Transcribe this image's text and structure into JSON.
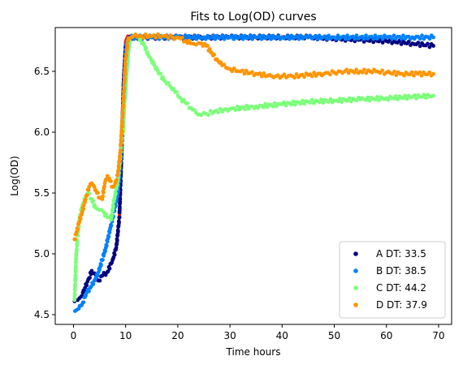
{
  "chart_data": {
    "type": "scatter",
    "title": "Fits to Log(OD) curves",
    "xlabel": "Time hours",
    "ylabel": "Log(OD)",
    "xlim": [
      -3.5,
      72.5
    ],
    "ylim": [
      4.42,
      6.86
    ],
    "xticks": [
      0,
      10,
      20,
      30,
      40,
      50,
      60,
      70
    ],
    "yticks": [
      4.5,
      5.0,
      5.5,
      6.0,
      6.5
    ],
    "ytick_labels": [
      "4.5",
      "5.0",
      "5.5",
      "6.0",
      "6.5"
    ],
    "grid": false,
    "legend_position": "lower-right",
    "series": [
      {
        "name": "A DT: 33.5",
        "color": "#00007f",
        "points": [
          [
            0.2,
            4.61
          ],
          [
            0.8,
            4.62
          ],
          [
            1.5,
            4.65
          ],
          [
            2.2,
            4.72
          ],
          [
            3.0,
            4.8
          ],
          [
            3.5,
            4.86
          ],
          [
            4.0,
            4.84
          ],
          [
            4.8,
            4.78
          ],
          [
            5.5,
            4.82
          ],
          [
            6.5,
            4.85
          ],
          [
            7.5,
            4.95
          ],
          [
            8.2,
            5.05
          ],
          [
            8.8,
            5.3
          ],
          [
            9.2,
            5.8
          ],
          [
            9.6,
            6.4
          ],
          [
            10.0,
            6.7
          ],
          [
            10.5,
            6.77
          ],
          [
            12,
            6.78
          ],
          [
            15,
            6.78
          ],
          [
            20,
            6.78
          ],
          [
            25,
            6.78
          ],
          [
            30,
            6.78
          ],
          [
            35,
            6.78
          ],
          [
            40,
            6.78
          ],
          [
            45,
            6.78
          ],
          [
            50,
            6.77
          ],
          [
            55,
            6.76
          ],
          [
            60,
            6.75
          ],
          [
            65,
            6.73
          ],
          [
            69,
            6.71
          ]
        ]
      },
      {
        "name": "B DT: 38.5",
        "color": "#0080ff",
        "points": [
          [
            0.3,
            4.53
          ],
          [
            1.0,
            4.55
          ],
          [
            1.8,
            4.6
          ],
          [
            2.5,
            4.68
          ],
          [
            3.2,
            4.72
          ],
          [
            4.0,
            4.78
          ],
          [
            4.8,
            4.85
          ],
          [
            5.5,
            4.95
          ],
          [
            6.2,
            5.05
          ],
          [
            7.0,
            5.2
          ],
          [
            7.8,
            5.35
          ],
          [
            8.5,
            5.5
          ],
          [
            9.0,
            5.75
          ],
          [
            9.4,
            6.1
          ],
          [
            9.8,
            6.5
          ],
          [
            10.2,
            6.75
          ],
          [
            10.8,
            6.78
          ],
          [
            12,
            6.78
          ],
          [
            15,
            6.78
          ],
          [
            20,
            6.78
          ],
          [
            25,
            6.78
          ],
          [
            30,
            6.78
          ],
          [
            35,
            6.78
          ],
          [
            40,
            6.78
          ],
          [
            45,
            6.78
          ],
          [
            50,
            6.78
          ],
          [
            55,
            6.78
          ],
          [
            60,
            6.78
          ],
          [
            65,
            6.78
          ],
          [
            69,
            6.78
          ]
        ]
      },
      {
        "name": "C DT: 44.2",
        "color": "#7cff79",
        "points": [
          [
            0.2,
            4.62
          ],
          [
            0.5,
            4.97
          ],
          [
            0.8,
            5.15
          ],
          [
            1.2,
            5.3
          ],
          [
            1.6,
            5.38
          ],
          [
            2.2,
            5.45
          ],
          [
            2.8,
            5.5
          ],
          [
            3.5,
            5.45
          ],
          [
            4.2,
            5.38
          ],
          [
            5.0,
            5.36
          ],
          [
            5.8,
            5.34
          ],
          [
            6.5,
            5.3
          ],
          [
            7.2,
            5.28
          ],
          [
            7.8,
            5.45
          ],
          [
            8.5,
            5.6
          ],
          [
            9.0,
            5.8
          ],
          [
            9.5,
            6.1
          ],
          [
            10.0,
            6.5
          ],
          [
            10.5,
            6.75
          ],
          [
            11.5,
            6.79
          ],
          [
            12.5,
            6.78
          ],
          [
            13.5,
            6.72
          ],
          [
            14.5,
            6.62
          ],
          [
            15.5,
            6.55
          ],
          [
            16.5,
            6.48
          ],
          [
            17.5,
            6.42
          ],
          [
            18.5,
            6.38
          ],
          [
            19.5,
            6.33
          ],
          [
            20.5,
            6.28
          ],
          [
            21.5,
            6.24
          ],
          [
            22.5,
            6.2
          ],
          [
            23.5,
            6.16
          ],
          [
            24.5,
            6.14
          ],
          [
            25.5,
            6.15
          ],
          [
            27,
            6.17
          ],
          [
            30,
            6.19
          ],
          [
            35,
            6.21
          ],
          [
            40,
            6.23
          ],
          [
            45,
            6.25
          ],
          [
            50,
            6.26
          ],
          [
            55,
            6.27
          ],
          [
            60,
            6.28
          ],
          [
            65,
            6.29
          ],
          [
            69,
            6.3
          ]
        ]
      },
      {
        "name": "D DT: 37.9",
        "color": "#ff9400",
        "points": [
          [
            0.2,
            5.12
          ],
          [
            0.6,
            5.18
          ],
          [
            1.0,
            5.25
          ],
          [
            1.5,
            5.32
          ],
          [
            2.0,
            5.4
          ],
          [
            2.5,
            5.48
          ],
          [
            3.0,
            5.55
          ],
          [
            3.5,
            5.58
          ],
          [
            4.0,
            5.55
          ],
          [
            4.5,
            5.5
          ],
          [
            5.0,
            5.46
          ],
          [
            5.5,
            5.45
          ],
          [
            6.0,
            5.58
          ],
          [
            6.5,
            5.64
          ],
          [
            7.0,
            5.6
          ],
          [
            7.5,
            5.55
          ],
          [
            8.0,
            5.58
          ],
          [
            8.5,
            5.65
          ],
          [
            9.0,
            5.85
          ],
          [
            9.5,
            6.2
          ],
          [
            10.0,
            6.6
          ],
          [
            10.5,
            6.77
          ],
          [
            11.5,
            6.79
          ],
          [
            13,
            6.79
          ],
          [
            15,
            6.79
          ],
          [
            17,
            6.79
          ],
          [
            19,
            6.78
          ],
          [
            20.5,
            6.77
          ],
          [
            21.5,
            6.75
          ],
          [
            22.5,
            6.73
          ],
          [
            23.5,
            6.72
          ],
          [
            24.5,
            6.73
          ],
          [
            25.5,
            6.71
          ],
          [
            26.5,
            6.65
          ],
          [
            27.5,
            6.6
          ],
          [
            28.5,
            6.55
          ],
          [
            30,
            6.52
          ],
          [
            32,
            6.5
          ],
          [
            35,
            6.48
          ],
          [
            38,
            6.46
          ],
          [
            40,
            6.46
          ],
          [
            42,
            6.46
          ],
          [
            45,
            6.47
          ],
          [
            48,
            6.48
          ],
          [
            50,
            6.49
          ],
          [
            52,
            6.5
          ],
          [
            55,
            6.5
          ],
          [
            58,
            6.5
          ],
          [
            60,
            6.49
          ],
          [
            63,
            6.48
          ],
          [
            66,
            6.48
          ],
          [
            69,
            6.48
          ]
        ]
      }
    ],
    "fits": [
      {
        "color": "#ff1f00",
        "points": [
          [
            8.8,
            5.3
          ],
          [
            9.2,
            5.9
          ],
          [
            9.6,
            6.45
          ],
          [
            10.0,
            6.75
          ],
          [
            10.4,
            6.79
          ]
        ]
      },
      {
        "color": "#fff500",
        "points": [
          [
            9.6,
            6.0
          ],
          [
            10.0,
            6.45
          ],
          [
            10.4,
            6.72
          ],
          [
            10.8,
            6.78
          ],
          [
            11.2,
            6.79
          ]
        ]
      },
      {
        "color": "#4dffa9",
        "points": [
          [
            9.2,
            5.8
          ],
          [
            9.6,
            6.1
          ],
          [
            10.0,
            6.35
          ],
          [
            10.4,
            6.6
          ],
          [
            10.8,
            6.75
          ]
        ]
      }
    ]
  }
}
